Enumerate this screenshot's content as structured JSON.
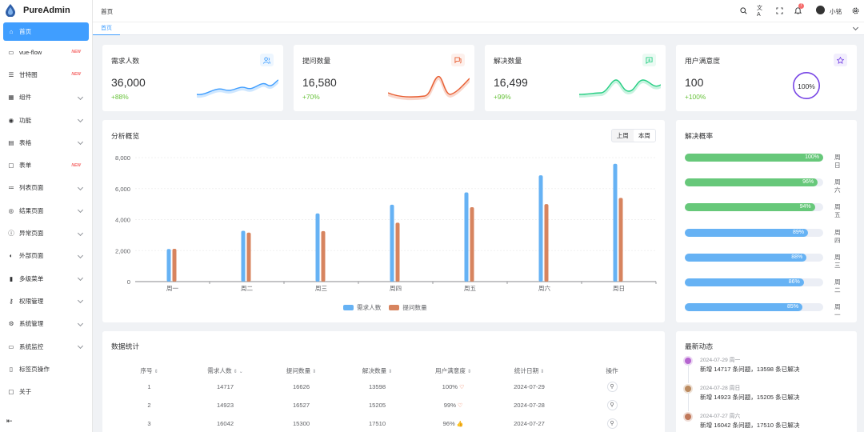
{
  "app": {
    "name": "PureAdmin"
  },
  "sidebar": {
    "items": [
      {
        "label": "首页",
        "icon": "home-icon",
        "active": true
      },
      {
        "label": "vue-flow",
        "icon": "flow-icon",
        "new": "NEW"
      },
      {
        "label": "甘特图",
        "icon": "gantt-icon",
        "new": "NEW"
      },
      {
        "label": "组件",
        "icon": "grid-icon",
        "chev": true
      },
      {
        "label": "功能",
        "icon": "function-icon",
        "chev": true
      },
      {
        "label": "表格",
        "icon": "table-icon",
        "chev": true
      },
      {
        "label": "表单",
        "icon": "form-icon",
        "new": "NEW"
      },
      {
        "label": "列表页面",
        "icon": "list-icon",
        "chev": true
      },
      {
        "label": "结果页面",
        "icon": "check-circle-icon",
        "chev": true
      },
      {
        "label": "异常页面",
        "icon": "info-icon",
        "chev": true
      },
      {
        "label": "外部页面",
        "icon": "external-icon",
        "chev": true
      },
      {
        "label": "多级菜单",
        "icon": "bar-chart-icon",
        "chev": true
      },
      {
        "label": "权限管理",
        "icon": "key-icon",
        "chev": true
      },
      {
        "label": "系统管理",
        "icon": "gear-icon",
        "chev": true
      },
      {
        "label": "系统监控",
        "icon": "monitor-icon",
        "chev": true
      },
      {
        "label": "标签页操作",
        "icon": "bookmark-icon"
      },
      {
        "label": "关于",
        "icon": "about-icon"
      }
    ]
  },
  "header": {
    "breadcrumb": "首页",
    "notification_count": "7",
    "username": "小铭"
  },
  "tabs": {
    "active": "首页"
  },
  "stats": [
    {
      "title": "需求人数",
      "value": "36,000",
      "pct": "+88%",
      "color": "#409eff",
      "icon": "user-icon"
    },
    {
      "title": "提问数量",
      "value": "16,580",
      "pct": "+70%",
      "color": "#e85f33",
      "icon": "question-icon"
    },
    {
      "title": "解决数量",
      "value": "16,499",
      "pct": "+99%",
      "color": "#26ce83",
      "icon": "chat-icon"
    },
    {
      "title": "用户满意度",
      "value": "100",
      "pct": "+100%",
      "color": "#7846e5",
      "icon": "star-icon",
      "ring": "100%"
    }
  ],
  "overview": {
    "title": "分析概览",
    "seg": [
      "上周",
      "本周"
    ],
    "seg_active": "本周"
  },
  "chart_data": {
    "type": "bar",
    "categories": [
      "周一",
      "周二",
      "周三",
      "周四",
      "周五",
      "周六",
      "周日"
    ],
    "series": [
      {
        "name": "需求人数",
        "values": [
          2101,
          3280,
          4400,
          4962,
          5752,
          6860,
          7600
        ],
        "color": "#66b2f4"
      },
      {
        "name": "提问数量",
        "values": [
          2116,
          3160,
          3260,
          3800,
          4800,
          5000,
          5400
        ],
        "color": "#d7845f"
      }
    ],
    "ylim": [
      0,
      8000
    ],
    "yticks": [
      "0",
      "2,000",
      "4,000",
      "6,000",
      "8,000"
    ],
    "legend": "bottom"
  },
  "rate": {
    "title": "解决概率",
    "items": [
      {
        "pct": 100,
        "label": "100%",
        "day": "周日",
        "color": "#67c87a"
      },
      {
        "pct": 96,
        "label": "96%",
        "day": "周六",
        "color": "#67c87a"
      },
      {
        "pct": 94,
        "label": "94%",
        "day": "周五",
        "color": "#67c87a"
      },
      {
        "pct": 89,
        "label": "89%",
        "day": "周四",
        "color": "#66b2f4"
      },
      {
        "pct": 88,
        "label": "88%",
        "day": "周三",
        "color": "#66b2f4"
      },
      {
        "pct": 86,
        "label": "86%",
        "day": "周二",
        "color": "#66b2f4"
      },
      {
        "pct": 85,
        "label": "85%",
        "day": "周一",
        "color": "#66b2f4"
      }
    ]
  },
  "table": {
    "title": "数据统计",
    "headers": [
      "序号",
      "需求人数",
      "提问数量",
      "解决数量",
      "用户满意度",
      "统计日期",
      "操作"
    ],
    "rows": [
      [
        "1",
        "14717",
        "16626",
        "13598",
        "100%",
        "2024-07-29"
      ],
      [
        "2",
        "14923",
        "16527",
        "15205",
        "99%",
        "2024-07-28"
      ],
      [
        "3",
        "16042",
        "15300",
        "17510",
        "96%",
        "2024-07-27"
      ]
    ]
  },
  "news": {
    "title": "最新动态",
    "items": [
      {
        "ts": "2024-07-29 周一",
        "text": "新增 14717 条问题，13598 条已解决",
        "color": "#b565d0"
      },
      {
        "ts": "2024-07-28 周日",
        "text": "新增 14923 条问题，15205 条已解决",
        "color": "#bb8a5f"
      },
      {
        "ts": "2024-07-27 周六",
        "text": "新增 16042 条问题，17510 条已解决",
        "color": "#c0785a"
      }
    ]
  }
}
